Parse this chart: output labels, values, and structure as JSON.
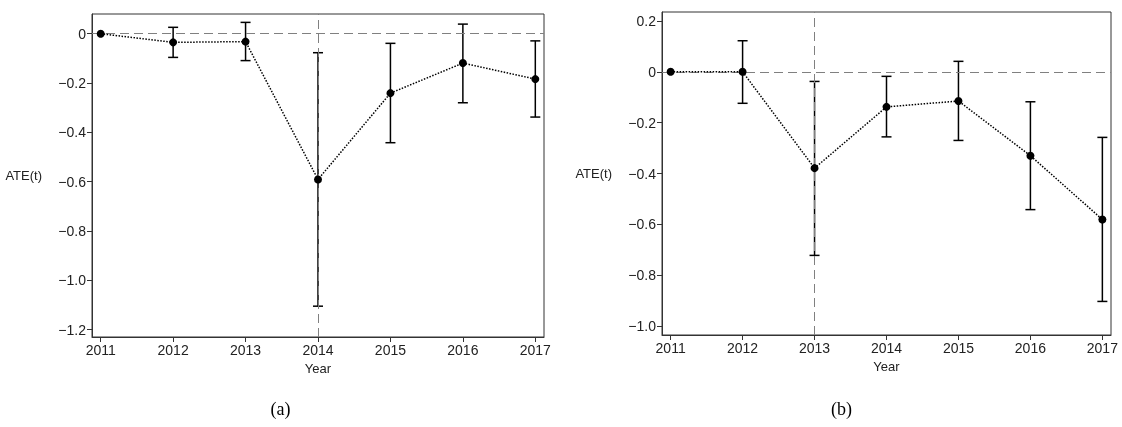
{
  "chart_data": [
    {
      "type": "line",
      "title": "(a)",
      "xlabel": "Year",
      "ylabel": "ATE(t)",
      "x": [
        2011,
        2012,
        2013,
        2014,
        2015,
        2016,
        2017
      ],
      "series": [
        {
          "color": "#000000",
          "values": [
            0,
            -0.035,
            -0.032,
            -0.591,
            -0.241,
            -0.119,
            -0.184
          ],
          "errors": [
            null,
            [
              -0.096,
              0.026
            ],
            [
              -0.109,
              0.046
            ],
            [
              -1.105,
              -0.077
            ],
            [
              -0.442,
              -0.039
            ],
            [
              -0.28,
              0.039
            ],
            [
              -0.338,
              -0.029
            ]
          ]
        }
      ],
      "marker": "circle",
      "line_style": "dotted",
      "grid": false,
      "xlim": [
        2010.88,
        2017.12
      ],
      "xticks": [
        2011,
        2012,
        2013,
        2014,
        2015,
        2016,
        2017
      ],
      "ylim": [
        -1.23,
        0.08
      ],
      "yticks": [
        {
          "value": -1.2,
          "label": "−1.2"
        },
        {
          "value": -1.0,
          "label": "−1.0"
        },
        {
          "value": -0.8,
          "label": "−0.8"
        },
        {
          "value": -0.6,
          "label": "−0.6"
        },
        {
          "value": -0.4,
          "label": "−0.4"
        },
        {
          "value": -0.2,
          "label": "−0.2"
        },
        {
          "value": 0,
          "label": "0"
        }
      ],
      "ref_lines": [
        {
          "axis": "y",
          "value": 0,
          "color": "#808080",
          "line_style": "dashed"
        },
        {
          "axis": "x",
          "value": 2014,
          "color": "#808080",
          "line_style": "dashed"
        }
      ]
    },
    {
      "type": "line",
      "title": "(b)",
      "xlabel": "Year",
      "ylabel": "ATE(t)",
      "x": [
        2011,
        2012,
        2013,
        2014,
        2015,
        2016,
        2017
      ],
      "series": [
        {
          "color": "#000000",
          "values": [
            0,
            0,
            -0.379,
            -0.138,
            -0.115,
            -0.33,
            -0.581
          ],
          "errors": [
            null,
            [
              -0.124,
              0.122
            ],
            [
              -0.722,
              -0.038
            ],
            [
              -0.256,
              -0.018
            ],
            [
              -0.27,
              0.041
            ],
            [
              -0.542,
              -0.118
            ],
            [
              -0.903,
              -0.258
            ]
          ]
        }
      ],
      "marker": "circle",
      "line_style": "dotted",
      "grid": false,
      "xlim": [
        2010.88,
        2017.12
      ],
      "xticks": [
        2011,
        2012,
        2013,
        2014,
        2015,
        2016,
        2017
      ],
      "ylim": [
        -1.035,
        0.235
      ],
      "yticks": [
        {
          "value": -1.0,
          "label": "−1.0"
        },
        {
          "value": -0.8,
          "label": "−0.8"
        },
        {
          "value": -0.6,
          "label": "−0.6"
        },
        {
          "value": -0.4,
          "label": "−0.4"
        },
        {
          "value": -0.2,
          "label": "−0.2"
        },
        {
          "value": 0,
          "label": "0"
        },
        0.2
      ],
      "ref_lines": [
        {
          "axis": "y",
          "value": 0,
          "color": "#808080",
          "line_style": "dashed"
        },
        {
          "axis": "x",
          "value": 2013,
          "color": "#808080",
          "line_style": "dashed"
        }
      ]
    }
  ]
}
